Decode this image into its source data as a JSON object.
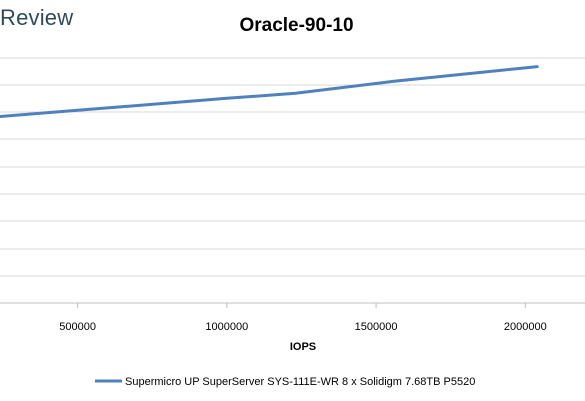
{
  "brand": {
    "text": "Review"
  },
  "chart_data": {
    "type": "line",
    "title": "Oracle-90-10",
    "xlabel": "IOPS",
    "ylabel": "",
    "x_ticks": [
      500000,
      1000000,
      1500000,
      2000000
    ],
    "x_tick_labels": [
      "500000",
      "1000000",
      "1500000",
      "2000000"
    ],
    "xlim": [
      240000,
      2200000
    ],
    "grid": true,
    "legend_position": "bottom",
    "series": [
      {
        "name": "Supermicro UP SuperServer SYS-111E-WR 8 x Solidigm 7.68TB P5520",
        "color": "#4f81bd",
        "x": [
          240000,
          500000,
          1000000,
          1230000,
          1560000,
          2040000
        ],
        "y": [
          0.683,
          0.706,
          0.75,
          0.768,
          0.812,
          0.866
        ]
      }
    ]
  }
}
